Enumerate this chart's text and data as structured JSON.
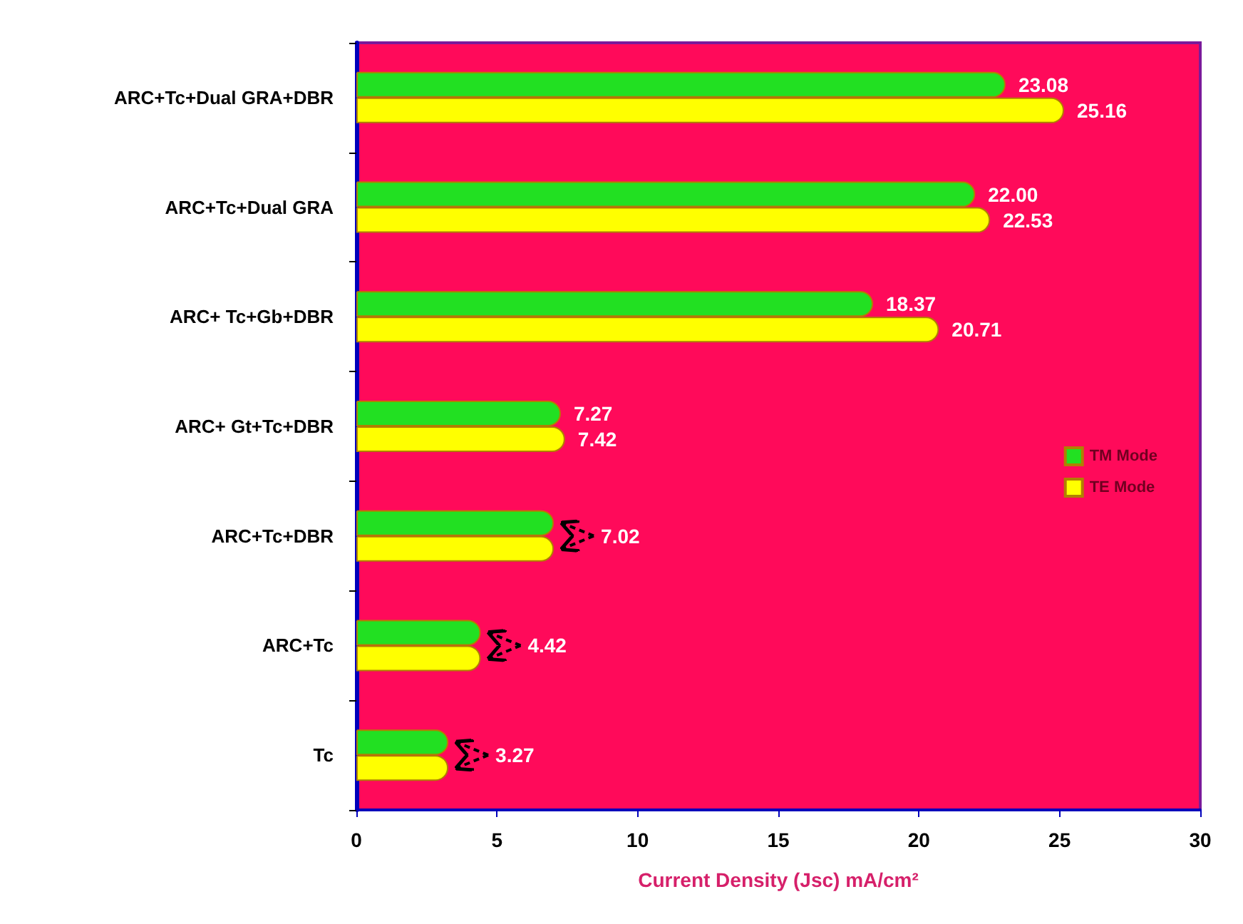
{
  "chart_data": {
    "type": "bar",
    "orientation": "horizontal",
    "xlabel": "Current Density (Jsc) mA/cm²",
    "categories": [
      "ARC+Tc+Dual GRA+DBR",
      "ARC+Tc+Dual GRA",
      "ARC+ Tc+Gb+DBR",
      "ARC+ Gt+Tc+DBR",
      "ARC+Tc+DBR",
      "ARC+Tc",
      "Tc"
    ],
    "series": [
      {
        "name": "TM Mode",
        "color": "#22e022",
        "values": [
          23.08,
          22.0,
          18.37,
          7.27,
          7.02,
          4.42,
          3.27
        ],
        "value_labels": [
          "23.08",
          "22.00",
          "18.37",
          "7.27",
          null,
          null,
          null
        ]
      },
      {
        "name": "TE Mode",
        "color": "#ffff00",
        "values": [
          25.16,
          22.53,
          20.71,
          7.42,
          7.02,
          4.42,
          3.27
        ],
        "value_labels": [
          "25.16",
          "22.53",
          "20.71",
          "7.42",
          "7.02",
          "4.42",
          "3.27"
        ]
      }
    ],
    "xlim": [
      0,
      30
    ],
    "xticks": [
      0,
      5,
      10,
      15,
      20,
      25,
      30
    ],
    "grid": false,
    "legend": "right"
  }
}
